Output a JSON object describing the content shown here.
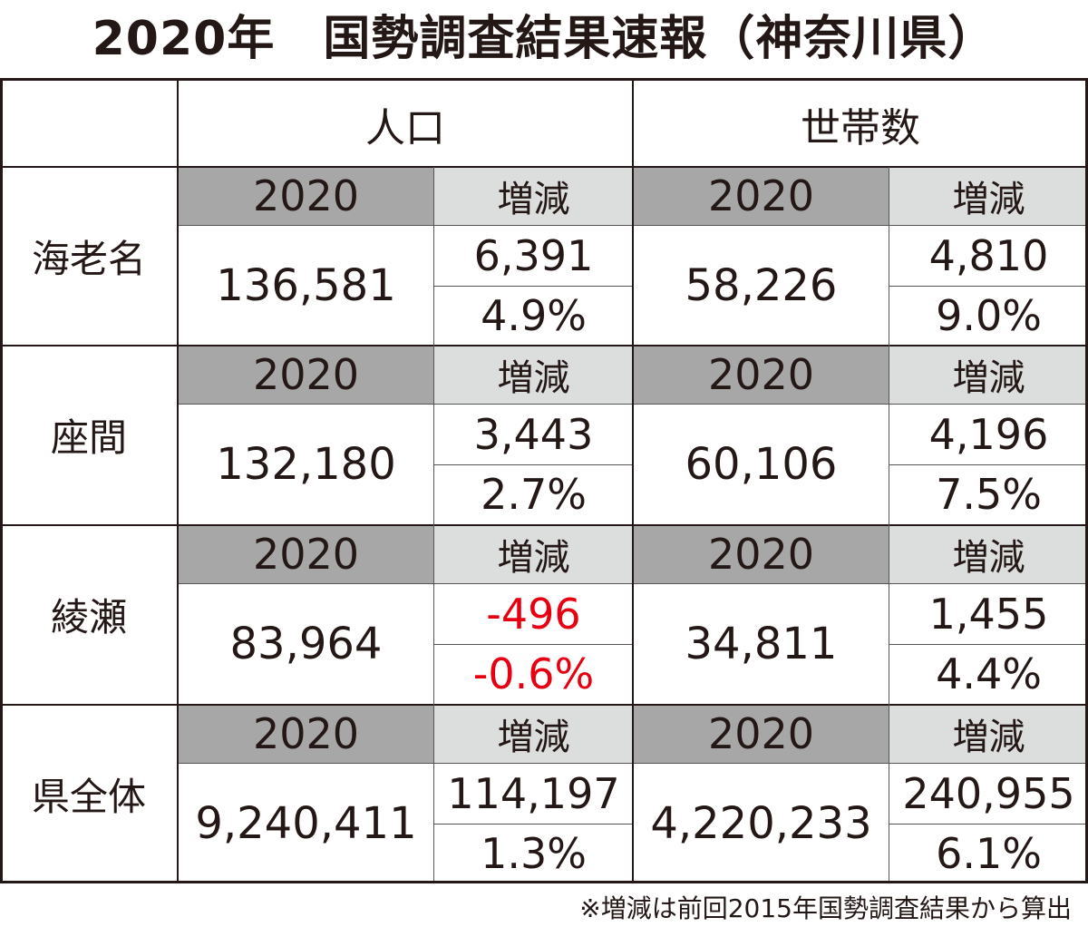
{
  "title": "2020年　国勢調査結果速報（神奈川県）",
  "headers": {
    "population": "人口",
    "households": "世帯数"
  },
  "sub_headers": {
    "year": "2020",
    "change": "増減"
  },
  "rows": [
    {
      "region": "海老名",
      "pop": "136,581",
      "pop_change": "6,391",
      "pop_rate": "4.9%",
      "hh": "58,226",
      "hh_change": "4,810",
      "hh_rate": "9.0%"
    },
    {
      "region": "座間",
      "pop": "132,180",
      "pop_change": "3,443",
      "pop_rate": "2.7%",
      "hh": "60,106",
      "hh_change": "4,196",
      "hh_rate": "7.5%"
    },
    {
      "region": "綾瀬",
      "pop": "83,964",
      "pop_change": "-496",
      "pop_rate": "-0.6%",
      "hh": "34,811",
      "hh_change": "1,455",
      "hh_rate": "4.4%"
    },
    {
      "region": "県全体",
      "pop": "9,240,411",
      "pop_change": "114,197",
      "pop_rate": "1.3%",
      "hh": "4,220,233",
      "hh_change": "240,955",
      "hh_rate": "6.1%"
    }
  ],
  "note": "※増減は前回2015年国勢調査結果から算出",
  "colors": {
    "negative": "#e60012",
    "year_header_bg": "#a7a7a7",
    "change_header_bg": "#dcdddd",
    "text": "#231815"
  }
}
